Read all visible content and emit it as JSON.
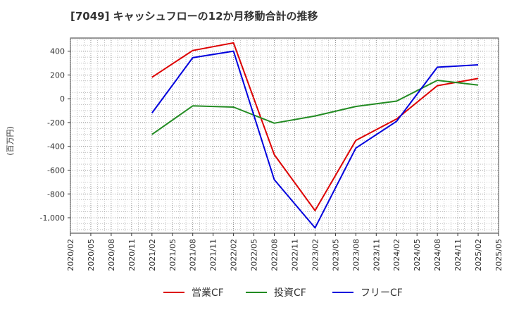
{
  "chart_data": {
    "type": "line",
    "title": "[7049]  キャッシュフローの12か月移動合計の推移",
    "ylabel": "(百万円)",
    "xlabel": "",
    "ylim": [
      -1130,
      510
    ],
    "yticks": [
      400,
      200,
      0,
      -200,
      -400,
      -600,
      -800,
      -1000
    ],
    "ytick_labels": [
      "400",
      "200",
      "0",
      "-200",
      "-400",
      "-600",
      "-800",
      "-1,000"
    ],
    "categories": [
      "2020/02",
      "2020/05",
      "2020/08",
      "2020/11",
      "2021/02",
      "2021/05",
      "2021/08",
      "2021/11",
      "2022/02",
      "2022/05",
      "2022/08",
      "2022/11",
      "2023/02",
      "2023/05",
      "2023/08",
      "2023/11",
      "2024/02",
      "2024/05",
      "2024/08",
      "2024/11",
      "2025/02",
      "2025/05"
    ],
    "grid": true,
    "legend_position": "bottom",
    "series": [
      {
        "name": "営業CF",
        "color": "#dd0000",
        "points": [
          [
            "2021/02",
            180
          ],
          [
            "2021/08",
            405
          ],
          [
            "2022/02",
            470
          ],
          [
            "2022/08",
            -470
          ],
          [
            "2023/02",
            -940
          ],
          [
            "2023/08",
            -350
          ],
          [
            "2024/02",
            -170
          ],
          [
            "2024/08",
            110
          ],
          [
            "2025/02",
            170
          ]
        ]
      },
      {
        "name": "投資CF",
        "color": "#228b22",
        "points": [
          [
            "2021/02",
            -300
          ],
          [
            "2021/08",
            -60
          ],
          [
            "2022/02",
            -70
          ],
          [
            "2022/08",
            -205
          ],
          [
            "2023/02",
            -145
          ],
          [
            "2023/08",
            -65
          ],
          [
            "2024/02",
            -20
          ],
          [
            "2024/08",
            155
          ],
          [
            "2025/02",
            115
          ]
        ]
      },
      {
        "name": "フリーCF",
        "color": "#0000dd",
        "points": [
          [
            "2021/02",
            -120
          ],
          [
            "2021/08",
            345
          ],
          [
            "2022/02",
            400
          ],
          [
            "2022/08",
            -680
          ],
          [
            "2023/02",
            -1085
          ],
          [
            "2023/08",
            -415
          ],
          [
            "2024/02",
            -190
          ],
          [
            "2024/08",
            265
          ],
          [
            "2025/02",
            285
          ]
        ]
      }
    ]
  }
}
